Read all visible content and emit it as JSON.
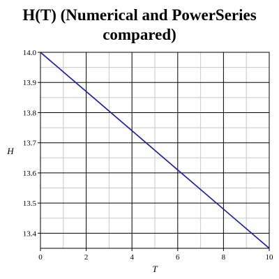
{
  "chart_data": {
    "type": "line",
    "title_line1": "H(T) (Numerical and PowerSeries",
    "title_line2": "compared)",
    "xlabel": "T",
    "ylabel": "H",
    "xlim": [
      0,
      10
    ],
    "ylim": [
      13.35,
      14.0
    ],
    "x_ticks": [
      0,
      2,
      4,
      6,
      8,
      10
    ],
    "y_ticks": [
      13.4,
      13.5,
      13.6,
      13.7,
      13.8,
      13.9,
      14.0
    ],
    "x_tick_labels": [
      "0",
      "2",
      "4",
      "6",
      "8",
      "10"
    ],
    "y_tick_labels": [
      "13.4",
      "13.5",
      "13.6",
      "13.7",
      "13.8",
      "13.9",
      "14.0"
    ],
    "grid": true,
    "series": [
      {
        "color": "#00008b",
        "x": [
          0,
          2,
          4,
          6,
          8,
          10
        ],
        "y": [
          14.0,
          13.87,
          13.74,
          13.61,
          13.48,
          13.35
        ]
      },
      {
        "color": "#2020c0",
        "x": [
          0,
          2,
          4,
          6,
          8,
          10
        ],
        "y": [
          14.0,
          13.87,
          13.74,
          13.61,
          13.48,
          13.35
        ]
      }
    ]
  }
}
